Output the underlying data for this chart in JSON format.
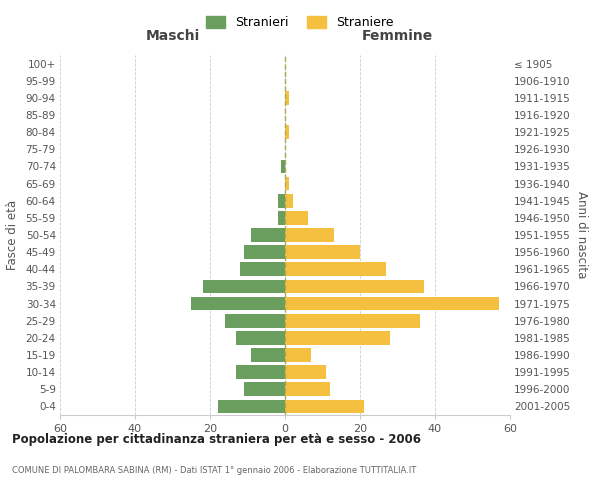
{
  "age_groups": [
    "0-4",
    "5-9",
    "10-14",
    "15-19",
    "20-24",
    "25-29",
    "30-34",
    "35-39",
    "40-44",
    "45-49",
    "50-54",
    "55-59",
    "60-64",
    "65-69",
    "70-74",
    "75-79",
    "80-84",
    "85-89",
    "90-94",
    "95-99",
    "100+"
  ],
  "birth_years": [
    "2001-2005",
    "1996-2000",
    "1991-1995",
    "1986-1990",
    "1981-1985",
    "1976-1980",
    "1971-1975",
    "1966-1970",
    "1961-1965",
    "1956-1960",
    "1951-1955",
    "1946-1950",
    "1941-1945",
    "1936-1940",
    "1931-1935",
    "1926-1930",
    "1921-1925",
    "1916-1920",
    "1911-1915",
    "1906-1910",
    "≤ 1905"
  ],
  "maschi": [
    18,
    11,
    13,
    9,
    13,
    16,
    25,
    22,
    12,
    11,
    9,
    2,
    2,
    0,
    1,
    0,
    0,
    0,
    0,
    0,
    0
  ],
  "femmine": [
    21,
    12,
    11,
    7,
    28,
    36,
    57,
    37,
    27,
    20,
    13,
    6,
    2,
    1,
    0,
    0,
    1,
    0,
    1,
    0,
    0
  ],
  "maschi_color": "#6a9e5e",
  "femmine_color": "#f5c040",
  "title": "Popolazione per cittadinanza straniera per età e sesso - 2006",
  "subtitle": "COMUNE DI PALOMBARA SABINA (RM) - Dati ISTAT 1° gennaio 2006 - Elaborazione TUTTITALIA.IT",
  "xlabel_left": "Maschi",
  "xlabel_right": "Femmine",
  "ylabel_left": "Fasce di età",
  "ylabel_right": "Anni di nascita",
  "legend_maschi": "Stranieri",
  "legend_femmine": "Straniere",
  "xlim": 60,
  "background_color": "#ffffff",
  "grid_color": "#cccccc",
  "dashed_line_color": "#aaa855"
}
